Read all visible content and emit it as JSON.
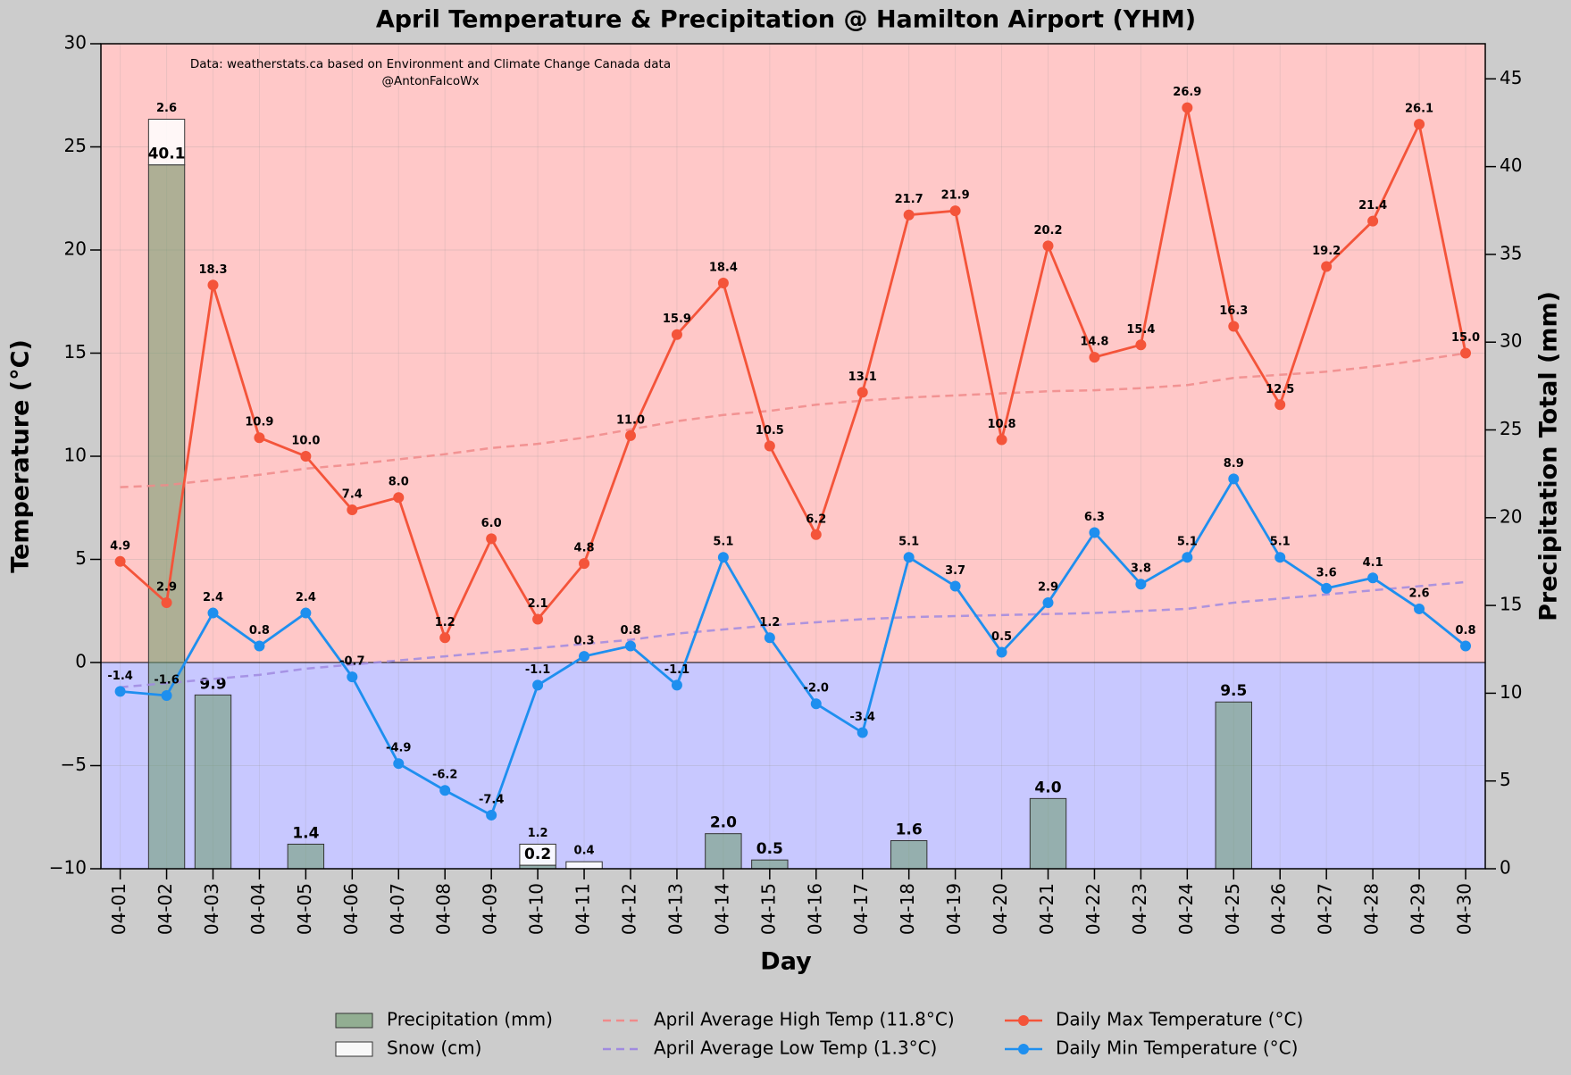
{
  "chart_data": {
    "type": "combo",
    "title": "April Temperature & Precipitation @ Hamilton Airport (YHM)",
    "x_label": "Day",
    "y_label": "Temperature (°C)",
    "y2_label": "Precipitation Total (mm)",
    "annotations": [
      "Data: weatherstats.ca based on Environment and Climate Change Canada data",
      "@AntonFalcoWx"
    ],
    "categories": [
      "04-01",
      "04-02",
      "04-03",
      "04-04",
      "04-05",
      "04-06",
      "04-07",
      "04-08",
      "04-09",
      "04-10",
      "04-11",
      "04-12",
      "04-13",
      "04-14",
      "04-15",
      "04-16",
      "04-17",
      "04-18",
      "04-19",
      "04-20",
      "04-21",
      "04-22",
      "04-23",
      "04-24",
      "04-25",
      "04-26",
      "04-27",
      "04-28",
      "04-29",
      "04-30"
    ],
    "ylim": [
      -10,
      30
    ],
    "yticks": [
      {
        "value": -10,
        "label": "−10"
      },
      {
        "value": -5,
        "label": "−5"
      },
      0,
      5,
      10,
      15,
      20,
      25,
      30
    ],
    "y2lim": [
      0,
      47
    ],
    "y2ticks": [
      0,
      5,
      10,
      15,
      20,
      25,
      30,
      35,
      40,
      45
    ],
    "grid": true,
    "legend": "lower center",
    "series": [
      {
        "name": "Precipitation (mm)",
        "type": "bar",
        "axis": "y2",
        "color": "#6b9a6b",
        "label_color": "#008000",
        "values": [
          0,
          40.1,
          9.9,
          0,
          1.4,
          0,
          0,
          0,
          0,
          0.2,
          0,
          0,
          0,
          2.0,
          0.5,
          0,
          0,
          1.6,
          0,
          0,
          4.0,
          0,
          0,
          0,
          9.5,
          0,
          0,
          0,
          0,
          0
        ],
        "value_labels": [
          null,
          "40.1",
          "9.9",
          null,
          "1.4",
          null,
          null,
          null,
          null,
          "0.2",
          null,
          null,
          null,
          "2.0",
          "0.5",
          null,
          null,
          "1.6",
          null,
          null,
          "4.0",
          null,
          null,
          null,
          "9.5",
          null,
          null,
          null,
          null,
          null
        ]
      },
      {
        "name": "Snow (cm)",
        "type": "bar",
        "axis": "y2",
        "stacked": true,
        "color": "#ffffff",
        "label_color": "#000000",
        "values": [
          0,
          2.6,
          0,
          0,
          0,
          0,
          0,
          0,
          0,
          1.2,
          0.4,
          0,
          0,
          0,
          0,
          0,
          0,
          0,
          0,
          0,
          0,
          0,
          0,
          0,
          0,
          0,
          0,
          0,
          0,
          0
        ],
        "value_labels": [
          null,
          "2.6",
          null,
          null,
          null,
          null,
          null,
          null,
          null,
          "1.2",
          "0.4",
          null,
          null,
          null,
          null,
          null,
          null,
          null,
          null,
          null,
          null,
          null,
          null,
          null,
          null,
          null,
          null,
          null,
          null,
          null
        ]
      },
      {
        "name": "April Average High Temp (11.8°C)",
        "type": "line",
        "dashed": true,
        "color": "#f08a8a",
        "values": [
          8.5,
          8.6,
          8.85,
          9.1,
          9.4,
          9.6,
          9.85,
          10.1,
          10.4,
          10.6,
          10.9,
          11.3,
          11.7,
          12.0,
          12.2,
          12.5,
          12.7,
          12.85,
          12.95,
          13.05,
          13.15,
          13.2,
          13.3,
          13.45,
          13.8,
          13.95,
          14.1,
          14.35,
          14.65,
          15.0
        ]
      },
      {
        "name": "April Average Low Temp (1.3°C)",
        "type": "line",
        "dashed": true,
        "color": "#a08ae0",
        "values": [
          -1.2,
          -1.0,
          -0.8,
          -0.6,
          -0.3,
          -0.1,
          0.1,
          0.3,
          0.5,
          0.7,
          0.9,
          1.1,
          1.4,
          1.6,
          1.8,
          1.95,
          2.1,
          2.2,
          2.25,
          2.3,
          2.35,
          2.4,
          2.5,
          2.6,
          2.9,
          3.1,
          3.3,
          3.5,
          3.7,
          3.9
        ]
      },
      {
        "name": "Daily Max Temperature (°C)",
        "type": "line",
        "markers": true,
        "color": "#f4543a",
        "label_color": "#e00000",
        "values": [
          4.9,
          2.9,
          18.3,
          10.9,
          10.0,
          7.4,
          8.0,
          1.2,
          6.0,
          2.1,
          4.8,
          11.0,
          15.9,
          18.4,
          10.5,
          6.2,
          13.1,
          21.7,
          21.9,
          10.8,
          20.2,
          14.8,
          15.4,
          26.9,
          16.3,
          12.5,
          19.2,
          21.4,
          26.1,
          15.0
        ],
        "value_labels": [
          "4.9",
          "2.9",
          "18.3",
          "10.9",
          "10.0",
          "7.4",
          "8.0",
          "1.2",
          "6.0",
          "2.1",
          "4.8",
          "11.0",
          "15.9",
          "18.4",
          "10.5",
          "6.2",
          "13.1",
          "21.7",
          "21.9",
          "10.8",
          "20.2",
          "14.8",
          "15.4",
          "26.9",
          "16.3",
          "12.5",
          "19.2",
          "21.4",
          "26.1",
          "15.0"
        ]
      },
      {
        "name": "Daily Min Temperature (°C)",
        "type": "line",
        "markers": true,
        "color": "#1e8fef",
        "label_color": "#0000cc",
        "values": [
          -1.4,
          -1.6,
          2.4,
          0.8,
          2.4,
          -0.7,
          -4.9,
          -6.2,
          -7.4,
          -1.1,
          0.3,
          0.8,
          -1.1,
          5.1,
          1.2,
          -2.0,
          -3.4,
          5.1,
          3.7,
          0.5,
          2.9,
          6.3,
          3.8,
          5.1,
          8.9,
          5.1,
          3.6,
          4.1,
          2.6,
          0.8
        ],
        "value_labels": [
          "-1.4",
          "-1.6",
          "2.4",
          "0.8",
          "2.4",
          "-0.7",
          "-4.9",
          "-6.2",
          "-7.4",
          "-1.1",
          "0.3",
          "0.8",
          "-1.1",
          "5.1",
          "1.2",
          "-2.0",
          "-3.4",
          "5.1",
          "3.7",
          "0.5",
          "2.9",
          "6.3",
          "3.8",
          "5.1",
          "8.9",
          "5.1",
          "3.6",
          "4.1",
          "2.6",
          "0.8"
        ]
      }
    ]
  }
}
